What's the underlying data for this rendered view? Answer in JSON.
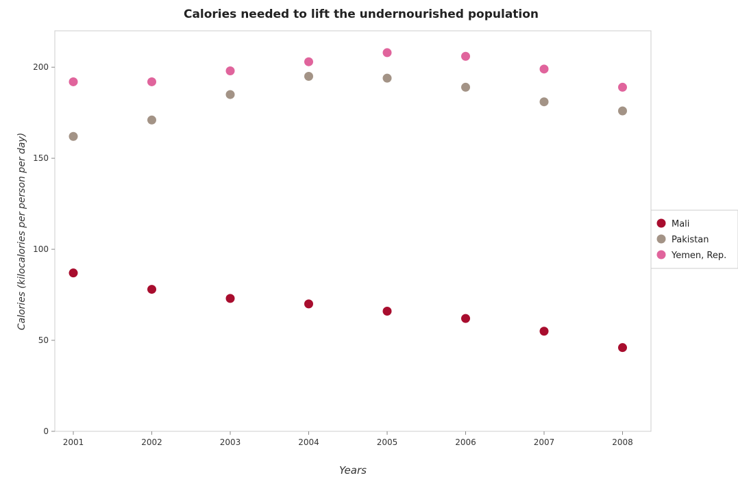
{
  "chart_data": {
    "type": "scatter",
    "title": "Calories needed to lift the undernourished population",
    "xlabel": "Years",
    "ylabel": "Calories (kilocalories per person per day)",
    "categories": [
      "2001",
      "2002",
      "2003",
      "2004",
      "2005",
      "2006",
      "2007",
      "2008"
    ],
    "ylim": [
      0,
      220
    ],
    "yticks": [
      0,
      50,
      100,
      150,
      200
    ],
    "grid": false,
    "legend_position": "right",
    "series": [
      {
        "name": "Mali",
        "color": "#a80d2e",
        "values": [
          87,
          78,
          73,
          70,
          66,
          62,
          55,
          46
        ]
      },
      {
        "name": "Pakistan",
        "color": "#a39386",
        "values": [
          162,
          171,
          185,
          195,
          194,
          189,
          181,
          176
        ]
      },
      {
        "name": "Yemen, Rep.",
        "color": "#e0649c",
        "values": [
          192,
          192,
          198,
          203,
          208,
          206,
          199,
          189
        ]
      }
    ]
  }
}
